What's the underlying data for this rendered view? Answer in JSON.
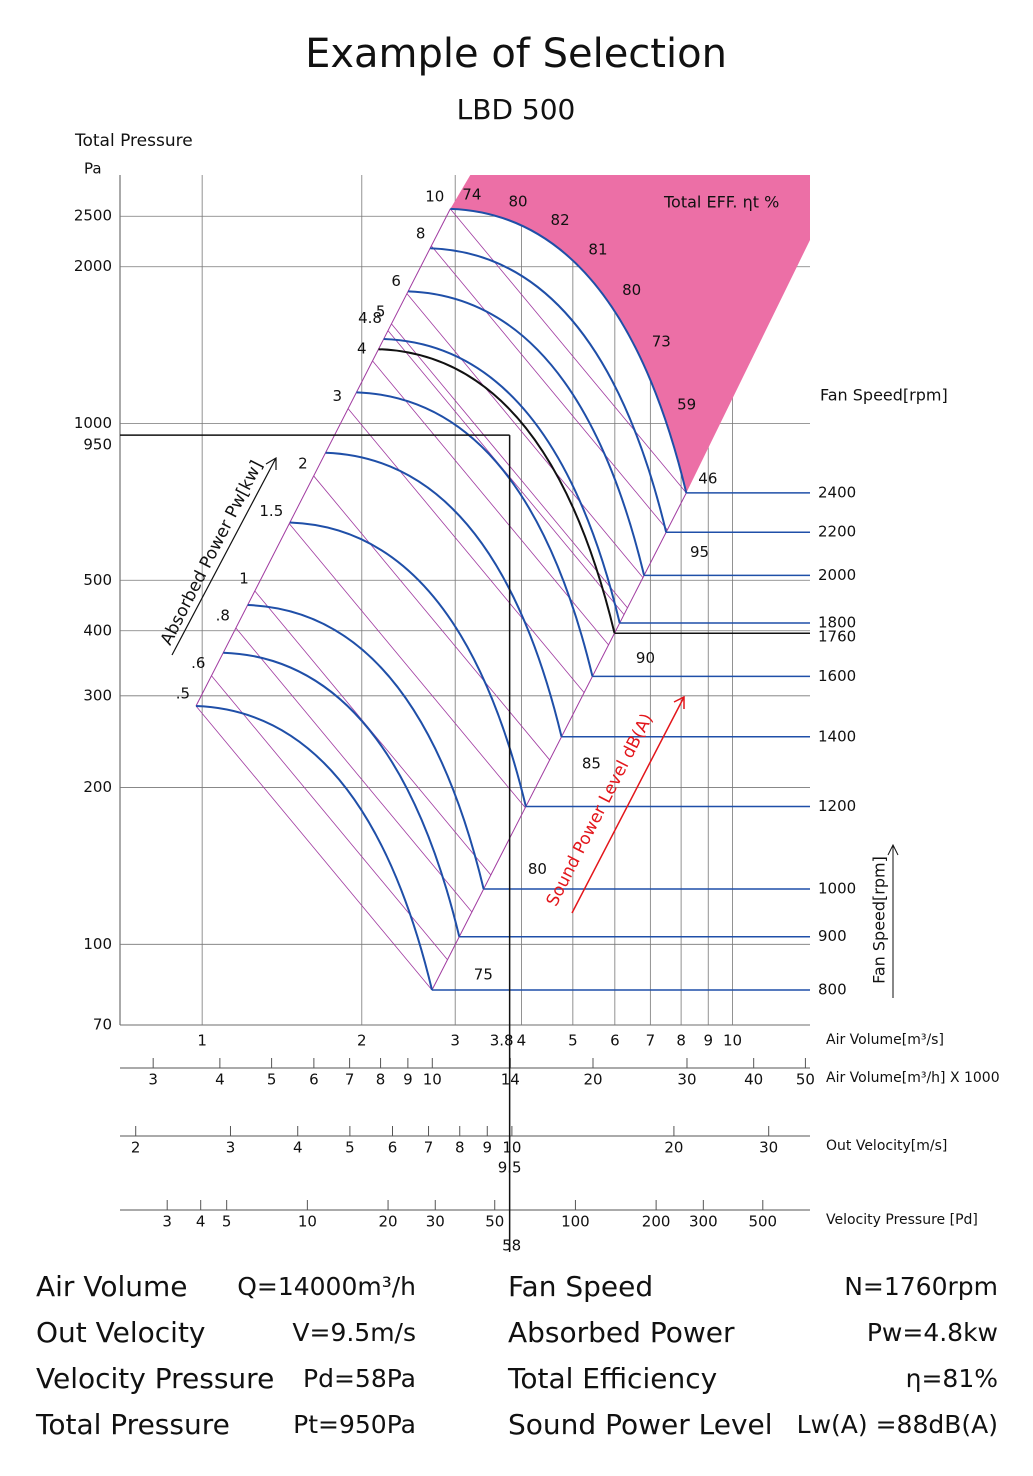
{
  "title": "Example of Selection",
  "subtitle": "LBD 500",
  "chart_data": {
    "type": "fan-curve",
    "y_label": "Total Pressure",
    "y_unit": "Pa",
    "y_log": true,
    "ylim": [
      70,
      3000
    ],
    "yticks": [
      70,
      100,
      200,
      300,
      400,
      500,
      1000,
      2000,
      2500
    ],
    "x_log": true,
    "xlim": [
      0.7,
      14
    ],
    "xticks": [
      1,
      2,
      3,
      4,
      5,
      6,
      7,
      8,
      9,
      10
    ],
    "x_label": "Air Volume[m³/s]",
    "grid": true,
    "scales": [
      {
        "label": "Air Volume[m³/h] X 1000",
        "lim": [
          2.6,
          51
        ],
        "ticks": [
          3,
          4,
          5,
          6,
          7,
          8,
          9,
          10,
          14,
          20,
          30,
          40,
          50
        ]
      },
      {
        "label": "Out Velocity[m/s]",
        "lim": [
          1.87,
          35.8
        ],
        "ticks": [
          2,
          3,
          4,
          5,
          6,
          7,
          8,
          9,
          10,
          20,
          30
        ]
      },
      {
        "label": "Velocity Pressure [Pd]",
        "lim": [
          2,
          750
        ],
        "ticks": [
          3,
          4,
          5,
          10,
          20,
          30,
          50,
          100,
          200,
          300,
          500
        ]
      }
    ],
    "speed_label": "Fan Speed[rpm]",
    "speed_color": "#1f4fa8",
    "speeds": [
      800,
      900,
      1000,
      1200,
      1400,
      1600,
      1800,
      2000,
      2200,
      2400
    ],
    "power_label": "Absorbed Power Pw[kw]",
    "powers": [
      {
        "value": 0.5,
        "label": ".5"
      },
      {
        "value": 0.6,
        "label": ".6"
      },
      {
        "value": 0.8,
        "label": ".8"
      },
      1,
      1.5,
      2,
      3,
      4,
      4.8,
      5,
      6,
      8,
      10
    ],
    "efficiency_label": "Total EFF. ηt %",
    "efficiency_color": "#ec6fa6",
    "efficiencies": [
      74,
      80,
      82,
      81,
      80,
      73,
      59,
      46
    ],
    "sound_label": "Sound Power Level dB(A)",
    "sound_color": "#e3161b",
    "sounds": [
      75,
      80,
      85,
      90,
      95
    ],
    "selection": {
      "air_volume": 3.8,
      "pressure": 950,
      "speed": 1760,
      "velocity": 9.5,
      "velocity_pressure": 58
    }
  },
  "summary": {
    "left": [
      {
        "label": "Air Volume",
        "value": "Q=14000m³/h"
      },
      {
        "label": "Out Velocity",
        "value": "V=9.5m/s"
      },
      {
        "label": "Velocity Pressure",
        "value": "Pd=58Pa"
      },
      {
        "label": "Total Pressure",
        "value": "Pt=950Pa"
      }
    ],
    "right": [
      {
        "label": "Fan Speed",
        "value": "N=1760rpm"
      },
      {
        "label": "Absorbed Power",
        "value": "Pw=4.8kw"
      },
      {
        "label": "Total Efficiency",
        "value": "η=81%"
      },
      {
        "label": "Sound Power Level",
        "value": "Lw(A) =88dB(A)"
      }
    ]
  }
}
